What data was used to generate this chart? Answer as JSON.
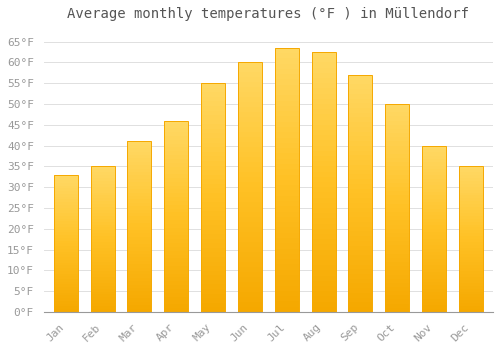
{
  "title": "Average monthly temperatures (°F ) in Müllendorf",
  "months": [
    "Jan",
    "Feb",
    "Mar",
    "Apr",
    "May",
    "Jun",
    "Jul",
    "Aug",
    "Sep",
    "Oct",
    "Nov",
    "Dec"
  ],
  "values": [
    33,
    35,
    41,
    46,
    55,
    60,
    63.5,
    62.5,
    57,
    50,
    40,
    35
  ],
  "bar_color_bottom": "#F5A800",
  "bar_color_top": "#FFD966",
  "bar_color_mid": "#FFC125",
  "background_color": "#FFFFFF",
  "grid_color": "#E0E0E0",
  "ytick_labels": [
    "0°F",
    "5°F",
    "10°F",
    "15°F",
    "20°F",
    "25°F",
    "30°F",
    "35°F",
    "40°F",
    "45°F",
    "50°F",
    "55°F",
    "60°F",
    "65°F"
  ],
  "ytick_values": [
    0,
    5,
    10,
    15,
    20,
    25,
    30,
    35,
    40,
    45,
    50,
    55,
    60,
    65
  ],
  "ylim": [
    0,
    68
  ],
  "title_fontsize": 10,
  "tick_fontsize": 8,
  "tick_color": "#999999",
  "text_color": "#555555",
  "bar_width": 0.65
}
